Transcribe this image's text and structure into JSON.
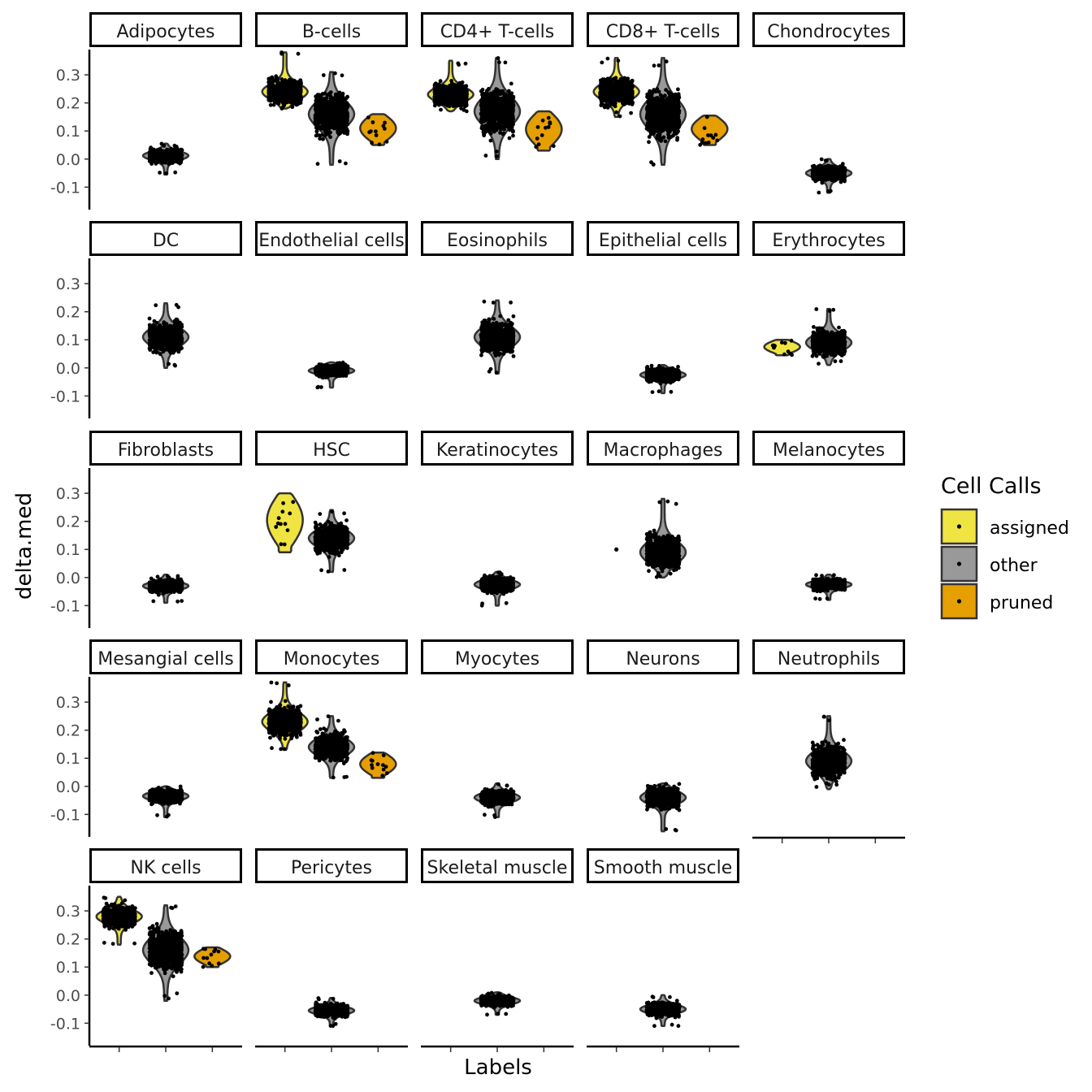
{
  "chart_data": {
    "type": "violin",
    "xlabel": "Labels",
    "ylabel": "delta.med",
    "y_ticks": [
      0.3,
      0.2,
      0.1,
      0.0,
      -0.1
    ],
    "y_tick_labels": [
      "0.3",
      "0.2",
      "0.1",
      "0.0",
      "-0.1"
    ],
    "ylim": [
      -0.18,
      0.39
    ],
    "x_positions": [
      "assigned",
      "other",
      "pruned"
    ],
    "legend": {
      "title": "Cell Calls",
      "position": "right",
      "items": [
        {
          "label": "assigned",
          "color": "#f0e442"
        },
        {
          "label": "other",
          "color": "#999999"
        },
        {
          "label": "pruned",
          "color": "#e69f00"
        }
      ]
    },
    "colors": {
      "assigned": "#f0e442",
      "other": "#999999",
      "pruned": "#e69f00",
      "point": "#000000",
      "outline": "#333333"
    },
    "panels": [
      {
        "label": "Adipocytes",
        "groups": [
          {
            "call": "other",
            "min": -0.055,
            "max": 0.055,
            "median": 0.012,
            "n": "large"
          }
        ]
      },
      {
        "label": "B-cells",
        "groups": [
          {
            "call": "assigned",
            "min": 0.18,
            "max": 0.38,
            "median": 0.24,
            "n": "large"
          },
          {
            "call": "other",
            "min": -0.02,
            "max": 0.31,
            "median": 0.16,
            "n": "large"
          },
          {
            "call": "pruned",
            "min": 0.05,
            "max": 0.16,
            "median": 0.12,
            "n": "small"
          }
        ]
      },
      {
        "label": "CD4+ T-cells",
        "groups": [
          {
            "call": "assigned",
            "min": 0.17,
            "max": 0.35,
            "median": 0.23,
            "n": "large"
          },
          {
            "call": "other",
            "min": 0.0,
            "max": 0.36,
            "median": 0.17,
            "n": "large"
          },
          {
            "call": "pruned",
            "min": 0.03,
            "max": 0.17,
            "median": 0.12,
            "n": "small"
          }
        ]
      },
      {
        "label": "CD8+ T-cells",
        "groups": [
          {
            "call": "assigned",
            "min": 0.15,
            "max": 0.36,
            "median": 0.24,
            "n": "large"
          },
          {
            "call": "other",
            "min": -0.02,
            "max": 0.36,
            "median": 0.16,
            "n": "large"
          },
          {
            "call": "pruned",
            "min": 0.05,
            "max": 0.155,
            "median": 0.13,
            "n": "small"
          }
        ]
      },
      {
        "label": "Chondrocytes",
        "groups": [
          {
            "call": "other",
            "min": -0.12,
            "max": 0.0,
            "median": -0.05,
            "n": "large"
          }
        ]
      },
      {
        "label": "DC",
        "groups": [
          {
            "call": "other",
            "min": 0.0,
            "max": 0.23,
            "median": 0.11,
            "n": "large"
          }
        ]
      },
      {
        "label": "Endothelial cells",
        "groups": [
          {
            "call": "other",
            "min": -0.07,
            "max": 0.02,
            "median": -0.01,
            "n": "large"
          }
        ]
      },
      {
        "label": "Eosinophils",
        "groups": [
          {
            "call": "other",
            "min": -0.02,
            "max": 0.24,
            "median": 0.11,
            "n": "large"
          }
        ]
      },
      {
        "label": "Epithelial cells",
        "groups": [
          {
            "call": "other",
            "min": -0.09,
            "max": 0.01,
            "median": -0.025,
            "n": "large"
          }
        ]
      },
      {
        "label": "Erythrocytes",
        "groups": [
          {
            "call": "assigned",
            "min": 0.045,
            "max": 0.1,
            "median": 0.065,
            "n": "small"
          },
          {
            "call": "other",
            "min": 0.01,
            "max": 0.21,
            "median": 0.09,
            "n": "large"
          }
        ]
      },
      {
        "label": "Fibroblasts",
        "groups": [
          {
            "call": "other",
            "min": -0.09,
            "max": 0.01,
            "median": -0.03,
            "n": "large"
          }
        ]
      },
      {
        "label": "HSC",
        "groups": [
          {
            "call": "assigned",
            "min": 0.09,
            "max": 0.3,
            "median": 0.2,
            "n": "small"
          },
          {
            "call": "other",
            "min": 0.02,
            "max": 0.24,
            "median": 0.14,
            "n": "large"
          }
        ]
      },
      {
        "label": "Keratinocytes",
        "groups": [
          {
            "call": "other",
            "min": -0.1,
            "max": 0.02,
            "median": -0.025,
            "n": "large"
          }
        ]
      },
      {
        "label": "Macrophages",
        "groups": [
          {
            "call": "assigned",
            "min": 0.1,
            "max": 0.1,
            "median": 0.1,
            "n": "single"
          },
          {
            "call": "other",
            "min": 0.0,
            "max": 0.28,
            "median": 0.09,
            "n": "large"
          }
        ]
      },
      {
        "label": "Melanocytes",
        "groups": [
          {
            "call": "other",
            "min": -0.08,
            "max": 0.01,
            "median": -0.025,
            "n": "large"
          }
        ]
      },
      {
        "label": "Mesangial cells",
        "groups": [
          {
            "call": "other",
            "min": -0.11,
            "max": 0.0,
            "median": -0.035,
            "n": "large"
          }
        ]
      },
      {
        "label": "Monocytes",
        "groups": [
          {
            "call": "assigned",
            "min": 0.13,
            "max": 0.37,
            "median": 0.23,
            "n": "large"
          },
          {
            "call": "other",
            "min": 0.03,
            "max": 0.25,
            "median": 0.14,
            "n": "large"
          },
          {
            "call": "pruned",
            "min": 0.03,
            "max": 0.12,
            "median": 0.05,
            "n": "small"
          }
        ]
      },
      {
        "label": "Myocytes",
        "groups": [
          {
            "call": "other",
            "min": -0.11,
            "max": 0.01,
            "median": -0.04,
            "n": "large"
          }
        ]
      },
      {
        "label": "Neurons",
        "groups": [
          {
            "call": "other",
            "min": -0.16,
            "max": 0.01,
            "median": -0.04,
            "n": "large"
          }
        ]
      },
      {
        "label": "Neutrophils",
        "groups": [
          {
            "call": "other",
            "min": -0.01,
            "max": 0.25,
            "median": 0.09,
            "n": "large"
          }
        ]
      },
      {
        "label": "NK cells",
        "groups": [
          {
            "call": "assigned",
            "min": 0.18,
            "max": 0.35,
            "median": 0.28,
            "n": "large"
          },
          {
            "call": "other",
            "min": -0.02,
            "max": 0.32,
            "median": 0.16,
            "n": "large"
          },
          {
            "call": "pruned",
            "min": 0.1,
            "max": 0.17,
            "median": 0.15,
            "n": "small"
          }
        ]
      },
      {
        "label": "Pericytes",
        "groups": [
          {
            "call": "other",
            "min": -0.11,
            "max": -0.01,
            "median": -0.055,
            "n": "large"
          }
        ]
      },
      {
        "label": "Skeletal muscle",
        "groups": [
          {
            "call": "other",
            "min": -0.07,
            "max": 0.01,
            "median": -0.02,
            "n": "large"
          }
        ]
      },
      {
        "label": "Smooth muscle",
        "groups": [
          {
            "call": "other",
            "min": -0.11,
            "max": 0.0,
            "median": -0.05,
            "n": "large"
          }
        ]
      }
    ]
  }
}
